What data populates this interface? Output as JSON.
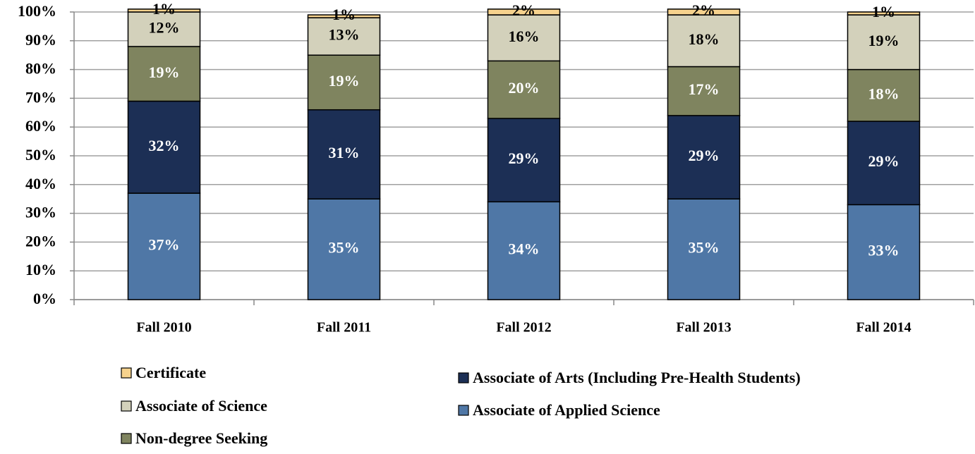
{
  "chart_data": {
    "type": "stacked_bar",
    "categories": [
      "Fall 2010",
      "Fall 2011",
      "Fall 2012",
      "Fall 2013",
      "Fall 2014"
    ],
    "series": [
      {
        "name": "Associate of Applied Science",
        "color": "#4f77a6",
        "values": [
          37,
          35,
          34,
          35,
          33
        ],
        "value_labels": [
          "37%",
          "35%",
          "34%",
          "35%",
          "33%"
        ]
      },
      {
        "name": "Associate of Arts (Including Pre-Health Students)",
        "color": "#1c2f55",
        "values": [
          32,
          31,
          29,
          29,
          29
        ],
        "value_labels": [
          "32%",
          "31%",
          "29%",
          "29%",
          "29%"
        ]
      },
      {
        "name": "Non-degree Seeking",
        "color": "#7f845f",
        "values": [
          19,
          19,
          20,
          17,
          18
        ],
        "value_labels": [
          "19%",
          "19%",
          "20%",
          "17%",
          "18%"
        ]
      },
      {
        "name": "Associate of Science",
        "color": "#d3d1bb",
        "values": [
          12,
          13,
          16,
          18,
          19
        ],
        "value_labels": [
          "12%",
          "13%",
          "16%",
          "18%",
          "19%"
        ]
      },
      {
        "name": "Certificate",
        "color": "#f6d28d",
        "values": [
          1,
          1,
          2,
          2,
          1
        ],
        "value_labels": [
          "1%",
          "1%",
          "2%",
          "2%",
          "1%"
        ]
      }
    ],
    "ylim": [
      0,
      100
    ],
    "yticks": [
      {
        "value": 0,
        "label": "0%"
      },
      {
        "value": 10,
        "label": "10%"
      },
      {
        "value": 20,
        "label": "20%"
      },
      {
        "value": 30,
        "label": "30%"
      },
      {
        "value": 40,
        "label": "40%"
      },
      {
        "value": 50,
        "label": "50%"
      },
      {
        "value": 60,
        "label": "60%"
      },
      {
        "value": 70,
        "label": "70%"
      },
      {
        "value": 80,
        "label": "80%"
      },
      {
        "value": 90,
        "label": "90%"
      },
      {
        "value": 100,
        "label": "100%"
      }
    ],
    "grid": true
  }
}
